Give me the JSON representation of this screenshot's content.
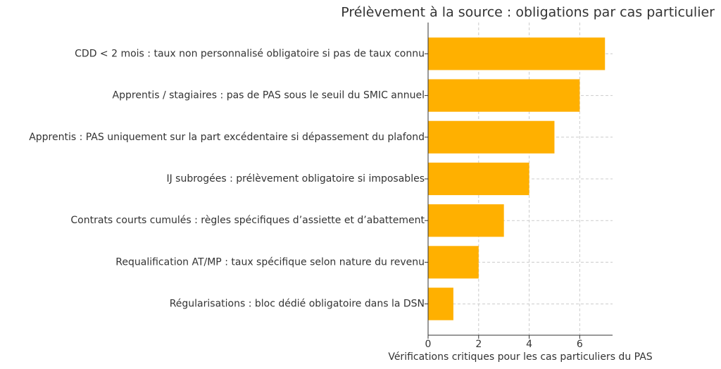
{
  "chart_data": {
    "type": "barh",
    "title": "Prélèvement à la source : obligations par cas particulier",
    "x_label": "Vérifications critiques pour les cas particuliers du PAS",
    "categories": [
      "CDD < 2 mois : taux non personnalisé obligatoire si pas de taux connu",
      "Apprentis / stagiaires : pas de PAS sous le seuil du SMIC annuel",
      "Apprentis : PAS uniquement sur la part excédentaire si dépassement du plafond",
      "IJ subrogées : prélèvement obligatoire si imposables",
      "Contrats courts cumulés : règles spécifiques d’assiette et d’abattement",
      "Requalification AT/MP : taux spécifique selon nature du revenu",
      "Régularisations : bloc dédié obligatoire dans la DSN"
    ],
    "values": [
      7,
      6,
      5,
      4,
      3,
      2,
      1
    ],
    "color": "#ffb000",
    "xlim": [
      0,
      7.3
    ],
    "xticks": [
      0,
      2,
      4,
      6
    ],
    "grid": true
  }
}
